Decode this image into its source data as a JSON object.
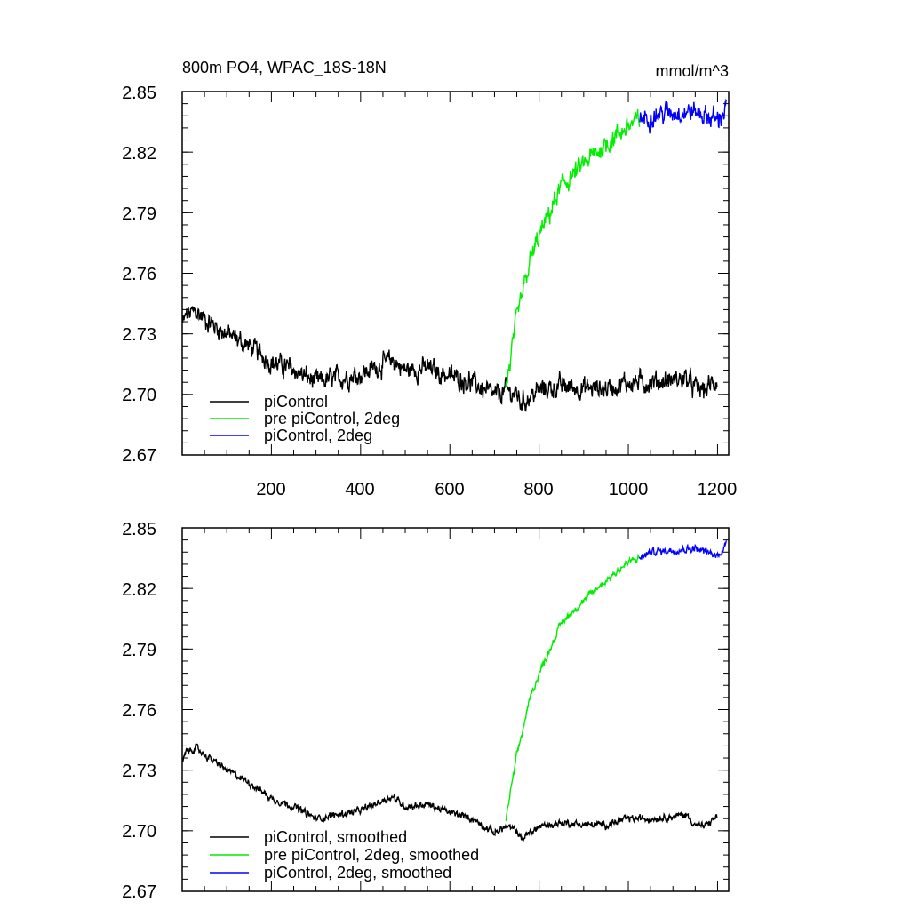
{
  "chart_data": [
    {
      "type": "line",
      "title": "800m PO4, WPAC_18S-18N",
      "units": "mmol/m^3",
      "xlim": [
        0,
        1225
      ],
      "ylim": [
        2.67,
        2.85
      ],
      "xticks": [
        200,
        400,
        600,
        800,
        1000,
        1200
      ],
      "xtick_labels": [
        "200",
        "400",
        "600",
        "800",
        "1000",
        "1200"
      ],
      "yticks": [
        2.67,
        2.7,
        2.73,
        2.76,
        2.79,
        2.82,
        2.85
      ],
      "ytick_labels": [
        "2.67",
        "2.70",
        "2.73",
        "2.76",
        "2.79",
        "2.82",
        "2.85"
      ],
      "legend_position": "bottom-left",
      "series": [
        {
          "name": "piControl",
          "color": "#000000",
          "noise": 0.0035,
          "x": [
            1,
            10,
            30,
            60,
            100,
            150,
            200,
            250,
            300,
            350,
            400,
            430,
            470,
            500,
            550,
            600,
            650,
            700,
            725,
            750,
            760,
            800,
            850,
            900,
            950,
            1000,
            1050,
            1100,
            1130,
            1150,
            1170,
            1199
          ],
          "values": [
            2.735,
            2.739,
            2.741,
            2.736,
            2.73,
            2.724,
            2.716,
            2.712,
            2.706,
            2.708,
            2.71,
            2.713,
            2.717,
            2.712,
            2.713,
            2.709,
            2.706,
            2.699,
            2.702,
            2.7,
            2.696,
            2.702,
            2.704,
            2.703,
            2.703,
            2.706,
            2.706,
            2.707,
            2.708,
            2.703,
            2.702,
            2.707
          ]
        },
        {
          "name": "pre piControl, 2deg",
          "color": "#00ee00",
          "noise": 0.0035,
          "x": [
            725,
            750,
            780,
            800,
            850,
            900,
            950,
            1000,
            1025
          ],
          "values": [
            2.702,
            2.737,
            2.766,
            2.778,
            2.803,
            2.814,
            2.824,
            2.833,
            2.836
          ]
        },
        {
          "name": "piControl, 2deg",
          "color": "#0000ff",
          "noise": 0.0035,
          "x": [
            1025,
            1050,
            1100,
            1150,
            1200,
            1220
          ],
          "values": [
            2.836,
            2.838,
            2.84,
            2.84,
            2.836,
            2.842
          ]
        }
      ]
    },
    {
      "type": "line",
      "xlim": [
        0,
        1225
      ],
      "ylim": [
        2.67,
        2.85
      ],
      "xticks": [
        200,
        400,
        600,
        800,
        1000,
        1200
      ],
      "yticks": [
        2.67,
        2.7,
        2.73,
        2.76,
        2.79,
        2.82,
        2.85
      ],
      "ytick_labels": [
        "2.67",
        "2.70",
        "2.73",
        "2.76",
        "2.79",
        "2.82",
        "2.85"
      ],
      "legend_position": "bottom-left",
      "series": [
        {
          "name": "piControl, smoothed",
          "color": "#000000",
          "noise": 0.0012,
          "x": [
            1,
            10,
            30,
            60,
            100,
            150,
            200,
            250,
            300,
            350,
            400,
            430,
            470,
            500,
            550,
            600,
            650,
            700,
            725,
            750,
            760,
            800,
            850,
            900,
            950,
            1000,
            1050,
            1100,
            1130,
            1150,
            1170,
            1199
          ],
          "values": [
            2.735,
            2.739,
            2.741,
            2.736,
            2.73,
            2.724,
            2.716,
            2.712,
            2.706,
            2.708,
            2.71,
            2.713,
            2.717,
            2.712,
            2.713,
            2.709,
            2.706,
            2.699,
            2.702,
            2.7,
            2.696,
            2.702,
            2.704,
            2.703,
            2.703,
            2.706,
            2.706,
            2.707,
            2.708,
            2.703,
            2.702,
            2.707
          ]
        },
        {
          "name": "pre piControl, 2deg, smoothed",
          "color": "#00ee00",
          "noise": 0.0012,
          "x": [
            725,
            750,
            780,
            800,
            850,
            900,
            950,
            1000,
            1025
          ],
          "values": [
            2.705,
            2.737,
            2.766,
            2.778,
            2.803,
            2.814,
            2.824,
            2.833,
            2.835
          ]
        },
        {
          "name": "piControl, 2deg, smoothed",
          "color": "#0000ff",
          "noise": 0.0012,
          "x": [
            1025,
            1050,
            1100,
            1150,
            1200,
            1220
          ],
          "values": [
            2.835,
            2.838,
            2.839,
            2.84,
            2.836,
            2.842
          ]
        }
      ]
    }
  ]
}
